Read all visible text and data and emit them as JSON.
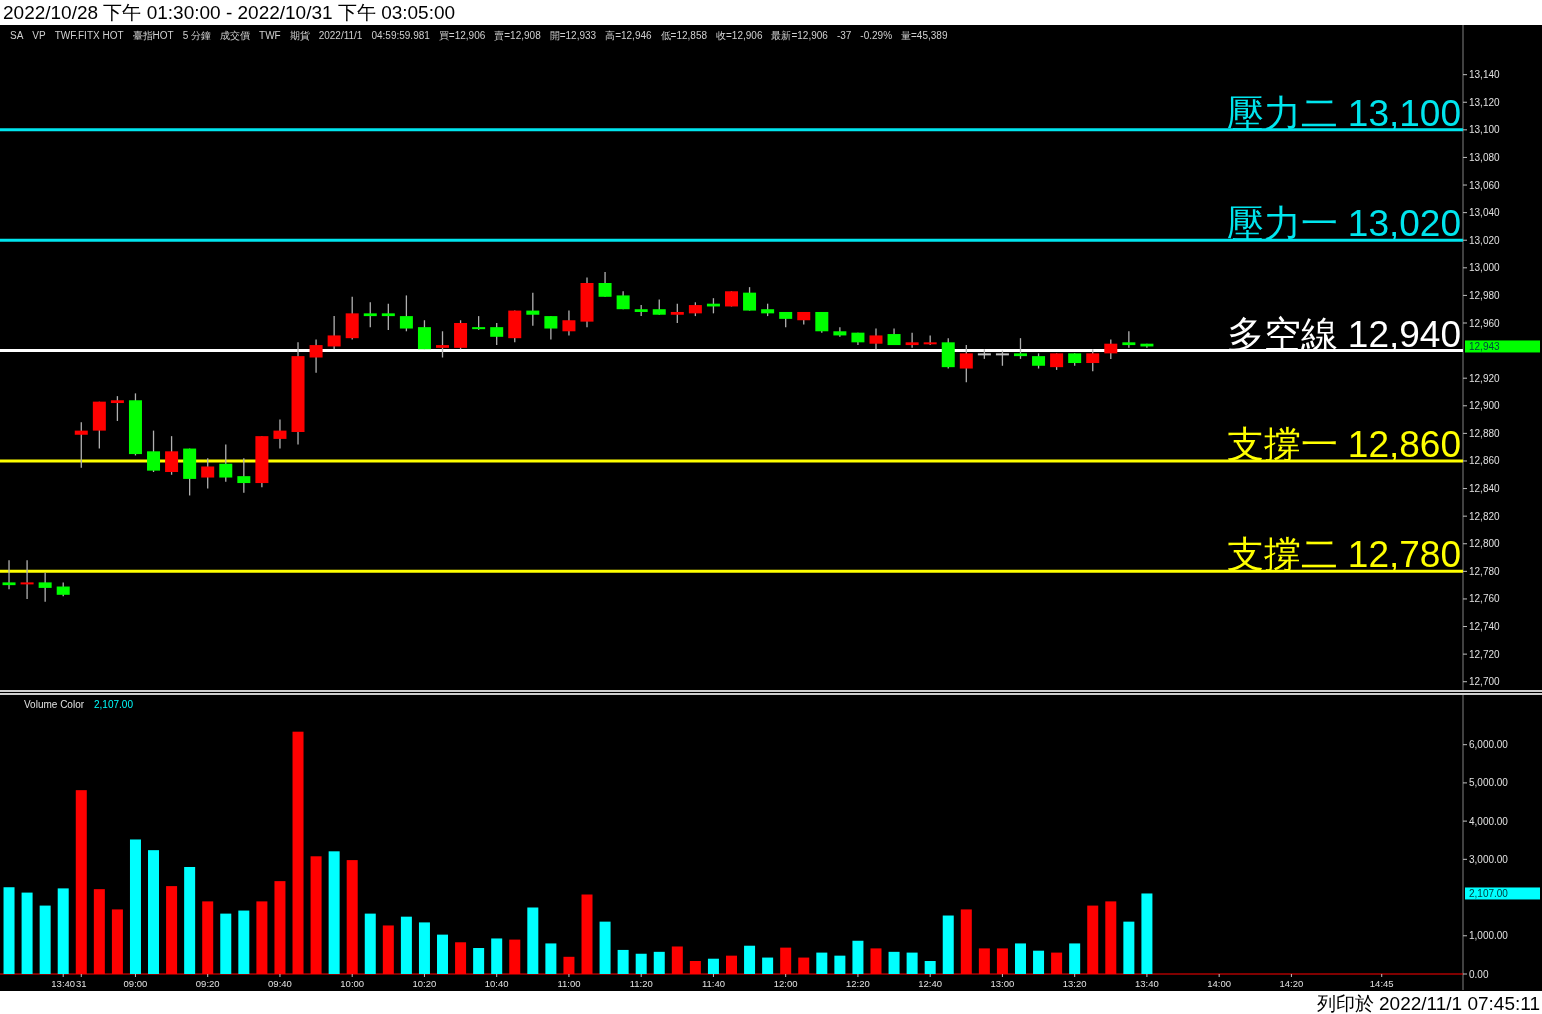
{
  "chart_data": [
    {
      "type": "candlestick",
      "title": "2022/10/28 下午 01:30:00 - 2022/10/31 下午 03:05:00",
      "categories": [
        null,
        null,
        null,
        null,
        null,
        null,
        null,
        null,
        null,
        null,
        null,
        null,
        null,
        null,
        null,
        null,
        null,
        null,
        null,
        null,
        null,
        null,
        null,
        null,
        null,
        null,
        null,
        null,
        null,
        null,
        null,
        null,
        null,
        null,
        null,
        null,
        null,
        null,
        null,
        null,
        null,
        null,
        null,
        null,
        null,
        null,
        null,
        null,
        null,
        null,
        null,
        null,
        null,
        null,
        null,
        null,
        null,
        null,
        null,
        null,
        null,
        null,
        null,
        null,
        null,
        null,
        null,
        null,
        null,
        null,
        null,
        null,
        null,
        null,
        null,
        null,
        null,
        null,
        null,
        null,
        null
      ],
      "ohlc": [
        [
          12772,
          12788,
          12767,
          12770
        ],
        [
          12771,
          12788,
          12760,
          12772
        ],
        [
          12772,
          12779,
          12758,
          12768
        ],
        [
          12769,
          12772,
          12762,
          12763
        ],
        [
          12879,
          12888,
          12855,
          12882
        ],
        [
          12882,
          12903,
          12869,
          12903
        ],
        [
          12902,
          12907,
          12889,
          12904
        ],
        [
          12904,
          12909,
          12864,
          12865
        ],
        [
          12867,
          12882,
          12852,
          12853
        ],
        [
          12852,
          12878,
          12850,
          12867
        ],
        [
          12869,
          12869,
          12835,
          12847
        ],
        [
          12848,
          12862,
          12840,
          12856
        ],
        [
          12858,
          12872,
          12845,
          12848
        ],
        [
          12849,
          12862,
          12837,
          12844
        ],
        [
          12844,
          12878,
          12841,
          12878
        ],
        [
          12876,
          12890,
          12869,
          12882
        ],
        [
          12881,
          12946,
          12872,
          12936
        ],
        [
          12935,
          12948,
          12924,
          12944
        ],
        [
          12943,
          12965,
          12941,
          12951
        ],
        [
          12949,
          12979,
          12948,
          12967
        ],
        [
          12967,
          12975,
          12957,
          12965
        ],
        [
          12967,
          12974,
          12955,
          12965
        ],
        [
          12965,
          12980,
          12954,
          12956
        ],
        [
          12957,
          12962,
          12941,
          12941
        ],
        [
          12942,
          12954,
          12935,
          12944
        ],
        [
          12942,
          12962,
          12941,
          12960
        ],
        [
          12957,
          12965,
          12955,
          12956
        ],
        [
          12957,
          12960,
          12944,
          12950
        ],
        [
          12949,
          12969,
          12946,
          12969
        ],
        [
          12969,
          12982,
          12958,
          12966
        ],
        [
          12965,
          12965,
          12948,
          12956
        ],
        [
          12954,
          12969,
          12951,
          12962
        ],
        [
          12961,
          12993,
          12957,
          12989
        ],
        [
          12989,
          12997,
          12979,
          12979
        ],
        [
          12980,
          12983,
          12970,
          12970
        ],
        [
          12970,
          12973,
          12965,
          12968
        ],
        [
          12970,
          12977,
          12966,
          12966
        ],
        [
          12966,
          12974,
          12960,
          12968
        ],
        [
          12967,
          12975,
          12965,
          12973
        ],
        [
          12974,
          12978,
          12967,
          12972
        ],
        [
          12972,
          12983,
          12972,
          12983
        ],
        [
          12982,
          12986,
          12969,
          12969
        ],
        [
          12970,
          12974,
          12965,
          12967
        ],
        [
          12968,
          12968,
          12957,
          12963
        ],
        [
          12962,
          12968,
          12959,
          12968
        ],
        [
          12968,
          12968,
          12953,
          12954
        ],
        [
          12954,
          12957,
          12950,
          12951
        ],
        [
          12953,
          12953,
          12944,
          12946
        ],
        [
          12945,
          12956,
          12941,
          12951
        ],
        [
          12952,
          12956,
          12944,
          12944
        ],
        [
          12944,
          12953,
          12942,
          12946
        ],
        [
          12945,
          12951,
          12944,
          12946
        ],
        [
          12946,
          12949,
          12927,
          12928
        ],
        [
          12927,
          12944,
          12917,
          12938
        ],
        [
          12938,
          12941,
          12934,
          12938
        ],
        [
          12938,
          12940,
          12929,
          12938
        ],
        [
          12938,
          12949,
          12934,
          12936
        ],
        [
          12936,
          12938,
          12927,
          12929
        ],
        [
          12928,
          12938,
          12926,
          12938
        ],
        [
          12938,
          12938,
          12929,
          12931
        ],
        [
          12931,
          12941,
          12925,
          12938
        ],
        [
          12938,
          12948,
          12934,
          12945
        ],
        [
          12946,
          12954,
          12942,
          12944
        ],
        [
          12945,
          12945,
          12942,
          12943
        ],
        null,
        null,
        null,
        null,
        null,
        null,
        null,
        null,
        null,
        null,
        null,
        null,
        null,
        null,
        null,
        null,
        null
      ],
      "colors": [
        "#00ff00",
        "#ff0000",
        "#00ff00",
        "#00ff00",
        "#ff0000",
        "#ff0000",
        "#ff0000",
        "#00ff00",
        "#00ff00",
        "#ff0000",
        "#00ff00",
        "#ff0000",
        "#00ff00",
        "#00ff00",
        "#ff0000",
        "#ff0000",
        "#ff0000",
        "#ff0000",
        "#ff0000",
        "#ff0000",
        "#00ff00",
        "#00ff00",
        "#00ff00",
        "#00ff00",
        "#ff0000",
        "#ff0000",
        "#00ff00",
        "#00ff00",
        "#ff0000",
        "#00ff00",
        "#00ff00",
        "#ff0000",
        "#ff0000",
        "#00ff00",
        "#00ff00",
        "#00ff00",
        "#00ff00",
        "#ff0000",
        "#ff0000",
        "#00ff00",
        "#ff0000",
        "#00ff00",
        "#00ff00",
        "#00ff00",
        "#ff0000",
        "#00ff00",
        "#00ff00",
        "#00ff00",
        "#ff0000",
        "#00ff00",
        "#ff0000",
        "#ff0000",
        "#00ff00",
        "#ff0000",
        "#c0c0c0",
        "#c0c0c0",
        "#00ff00",
        "#00ff00",
        "#ff0000",
        "#00ff00",
        "#ff0000",
        "#ff0000",
        "#00ff00",
        "#00ff00",
        null,
        null,
        null,
        null,
        null,
        null,
        null,
        null,
        null,
        null,
        null,
        null,
        null,
        null,
        null,
        null,
        null
      ],
      "ylim": [
        12694,
        13176
      ],
      "yticks": [
        {
          "value": 12700,
          "label": "12,700"
        },
        {
          "value": 12720,
          "label": "12,720"
        },
        {
          "value": 12740,
          "label": "12,740"
        },
        {
          "value": 12760,
          "label": "12,760"
        },
        {
          "value": 12780,
          "label": "12,780"
        },
        {
          "value": 12800,
          "label": "12,800"
        },
        {
          "value": 12820,
          "label": "12,820"
        },
        {
          "value": 12840,
          "label": "12,840"
        },
        {
          "value": 12860,
          "label": "12,860"
        },
        {
          "value": 12880,
          "label": "12,880"
        },
        {
          "value": 12900,
          "label": "12,900"
        },
        {
          "value": 12920,
          "label": "12,920"
        },
        {
          "value": 12960,
          "label": "12,960"
        },
        {
          "value": 12980,
          "label": "12,980"
        },
        {
          "value": 13000,
          "label": "13,000"
        },
        {
          "value": 13020,
          "label": "13,020"
        },
        {
          "value": 13040,
          "label": "13,040"
        },
        {
          "value": 13060,
          "label": "13,060"
        },
        {
          "value": 13080,
          "label": "13,080"
        },
        {
          "value": 13100,
          "label": "13,100"
        },
        {
          "value": 13120,
          "label": "13,120"
        },
        {
          "value": 13140,
          "label": "13,140"
        }
      ],
      "ref_lines": [
        {
          "axis": "y",
          "value": 13100,
          "label": "壓力二 13,100",
          "color": "#00e5ee"
        },
        {
          "axis": "y",
          "value": 13020,
          "label": "壓力一 13,020",
          "color": "#00e5ee"
        },
        {
          "axis": "y",
          "value": 12940,
          "label": "多空線 12,940",
          "color": "#ffffff"
        },
        {
          "axis": "y",
          "value": 12860,
          "label": "支撐一 12,860",
          "color": "#ffff00"
        },
        {
          "axis": "y",
          "value": 12780,
          "label": "支撐二 12,780",
          "color": "#ffff00"
        }
      ],
      "annotations": [
        "SA",
        "VP",
        "TWF.FITX HOT",
        "臺指HOT",
        "5 分鐘",
        "成交價",
        "TWF",
        "期貨",
        "2022/11/1",
        "04:59:59.981",
        "買=12,906",
        "賣=12,908",
        "開=12,933",
        "高=12,946",
        "低=12,858",
        "收=12,906",
        "最新=12,906",
        "-37",
        "-0.29%",
        "量=45,389",
        "12,943"
      ],
      "tick_labels": "y"
    },
    {
      "type": "bar",
      "title": "Volume Color",
      "categories": [
        null,
        null,
        null,
        "13:40",
        "31",
        null,
        null,
        "09:00",
        null,
        null,
        null,
        "09:20",
        null,
        null,
        null,
        "09:40",
        null,
        null,
        null,
        "10:00",
        null,
        null,
        null,
        "10:20",
        null,
        null,
        null,
        "10:40",
        null,
        null,
        null,
        "11:00",
        null,
        null,
        null,
        "11:20",
        null,
        null,
        null,
        "11:40",
        null,
        null,
        null,
        "12:00",
        null,
        null,
        null,
        "12:20",
        null,
        null,
        null,
        "12:40",
        null,
        null,
        null,
        "13:00",
        null,
        null,
        null,
        "13:20",
        null,
        null,
        null,
        "13:40",
        null,
        null,
        null,
        "14:00",
        null,
        null,
        null,
        "14:20",
        null,
        null,
        null,
        null,
        "14:45",
        null,
        null,
        null,
        null
      ],
      "values": [
        2270,
        2130,
        1790,
        2240,
        4810,
        2220,
        1690,
        3520,
        3240,
        2300,
        2800,
        1900,
        1580,
        1660,
        1900,
        2430,
        6340,
        3080,
        3210,
        2980,
        1580,
        1270,
        1500,
        1350,
        1030,
        830,
        680,
        930,
        900,
        1740,
        800,
        450,
        2080,
        1370,
        630,
        530,
        580,
        720,
        340,
        400,
        480,
        740,
        430,
        690,
        430,
        560,
        480,
        870,
        670,
        580,
        560,
        340,
        1530,
        1690,
        670,
        670,
        800,
        610,
        560,
        800,
        1790,
        1900,
        1370,
        2107,
        null,
        null,
        null,
        null,
        null,
        null,
        null,
        null,
        null,
        null,
        null,
        null,
        null,
        null,
        null,
        null,
        null
      ],
      "colors": [
        "#00ffff",
        "#00ffff",
        "#00ffff",
        "#00ffff",
        "#ff0000",
        "#ff0000",
        "#ff0000",
        "#00ffff",
        "#00ffff",
        "#ff0000",
        "#00ffff",
        "#ff0000",
        "#00ffff",
        "#00ffff",
        "#ff0000",
        "#ff0000",
        "#ff0000",
        "#ff0000",
        "#00ffff",
        "#ff0000",
        "#00ffff",
        "#ff0000",
        "#00ffff",
        "#00ffff",
        "#00ffff",
        "#ff0000",
        "#00ffff",
        "#00ffff",
        "#ff0000",
        "#00ffff",
        "#00ffff",
        "#ff0000",
        "#ff0000",
        "#00ffff",
        "#00ffff",
        "#00ffff",
        "#00ffff",
        "#ff0000",
        "#ff0000",
        "#00ffff",
        "#ff0000",
        "#00ffff",
        "#00ffff",
        "#ff0000",
        "#ff0000",
        "#00ffff",
        "#00ffff",
        "#00ffff",
        "#ff0000",
        "#00ffff",
        "#00ffff",
        "#00ffff",
        "#00ffff",
        "#ff0000",
        "#ff0000",
        "#ff0000",
        "#00ffff",
        "#00ffff",
        "#ff0000",
        "#00ffff",
        "#ff0000",
        "#ff0000",
        "#00ffff",
        "#00ffff",
        null,
        null,
        null,
        null,
        null,
        null,
        null,
        null,
        null,
        null,
        null,
        null,
        null,
        null,
        null,
        null,
        null
      ],
      "ylim": [
        0,
        7300
      ],
      "yticks": [
        {
          "value": 0,
          "label": "0.00"
        },
        {
          "value": 1000,
          "label": "1,000.00"
        },
        {
          "value": 3000,
          "label": "3,000.00"
        },
        {
          "value": 4000,
          "label": "4,000.00"
        },
        {
          "value": 5000,
          "label": "5,000.00"
        },
        {
          "value": 6000,
          "label": "6,000.00"
        }
      ],
      "annotations": [
        "2,107.00",
        "列印於 2022/11/1 07:45:11",
        "2,107.00"
      ]
    }
  ]
}
